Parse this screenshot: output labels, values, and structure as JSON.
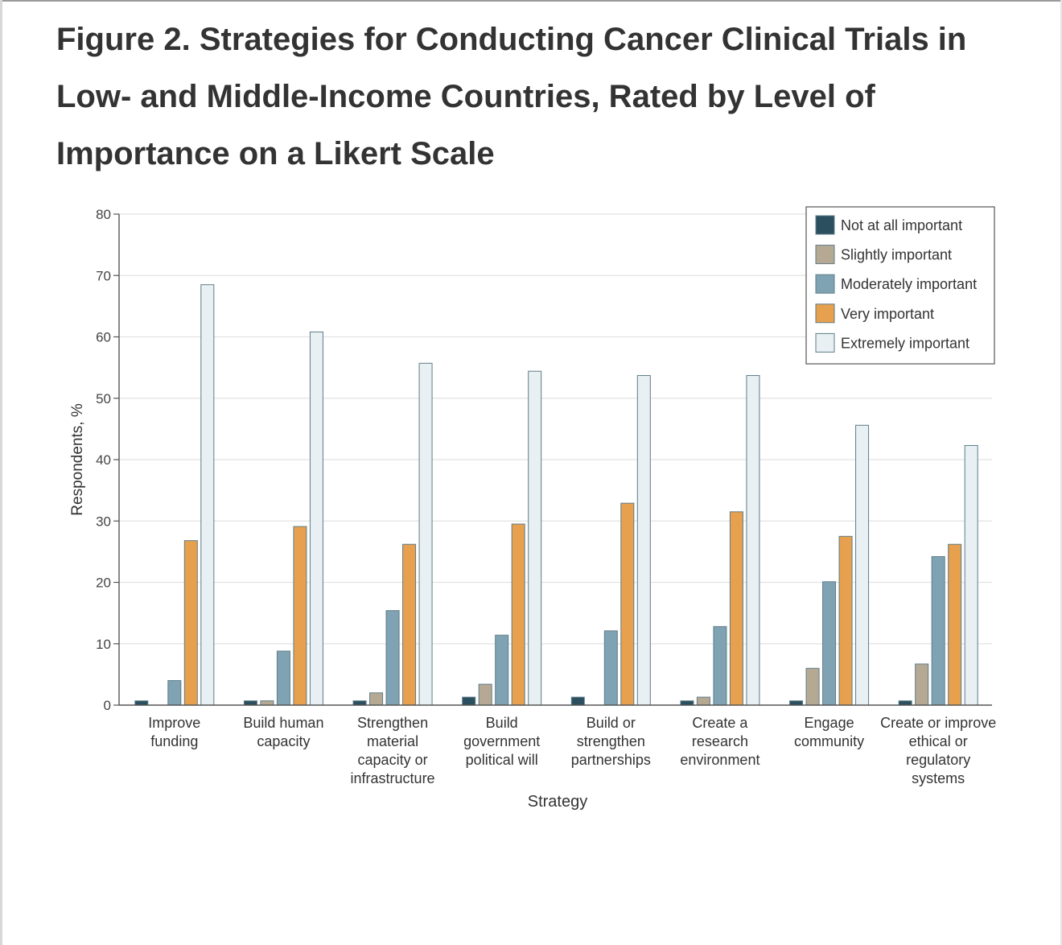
{
  "title": "Figure 2.  Strategies for Conducting Cancer Clinical Trials in Low- and Middle-Income Countries, Rated by Level of Importance on a Likert Scale",
  "chart_data": {
    "type": "bar",
    "xlabel": "Strategy",
    "ylabel": "Respondents, %",
    "ylim": [
      0,
      80
    ],
    "yticks": [
      0,
      10,
      20,
      30,
      40,
      50,
      60,
      70,
      80
    ],
    "grid": true,
    "legend_position": "top-right",
    "categories": [
      [
        "Improve",
        "funding"
      ],
      [
        "Build human",
        "capacity"
      ],
      [
        "Strengthen",
        "material",
        "capacity or",
        "infrastructure"
      ],
      [
        "Build",
        "government",
        "political will"
      ],
      [
        "Build or",
        "strengthen",
        "partnerships"
      ],
      [
        "Create a",
        "research",
        "environment"
      ],
      [
        "Engage",
        "community"
      ],
      [
        "Create or improve",
        "ethical or",
        "regulatory",
        "systems"
      ]
    ],
    "series": [
      {
        "name": "Not at all important",
        "color": "#2b4f5e",
        "values": [
          0.7,
          0.7,
          0.7,
          1.3,
          1.3,
          0.7,
          0.7,
          0.7
        ]
      },
      {
        "name": "Slightly important",
        "color": "#b5a994",
        "values": [
          0,
          0.7,
          2.0,
          3.4,
          0,
          1.3,
          6.0,
          6.7
        ]
      },
      {
        "name": "Moderately important",
        "color": "#7fa3b3",
        "values": [
          4.0,
          8.8,
          15.4,
          11.4,
          12.1,
          12.8,
          20.1,
          24.2
        ]
      },
      {
        "name": "Very important",
        "color": "#e6a04e",
        "values": [
          26.8,
          29.1,
          26.2,
          29.5,
          32.9,
          31.5,
          27.5,
          26.2
        ]
      },
      {
        "name": "Extremely important",
        "color": "#e8f0f4",
        "values": [
          68.5,
          60.8,
          55.7,
          54.4,
          53.7,
          53.7,
          45.6,
          42.3
        ]
      }
    ]
  }
}
